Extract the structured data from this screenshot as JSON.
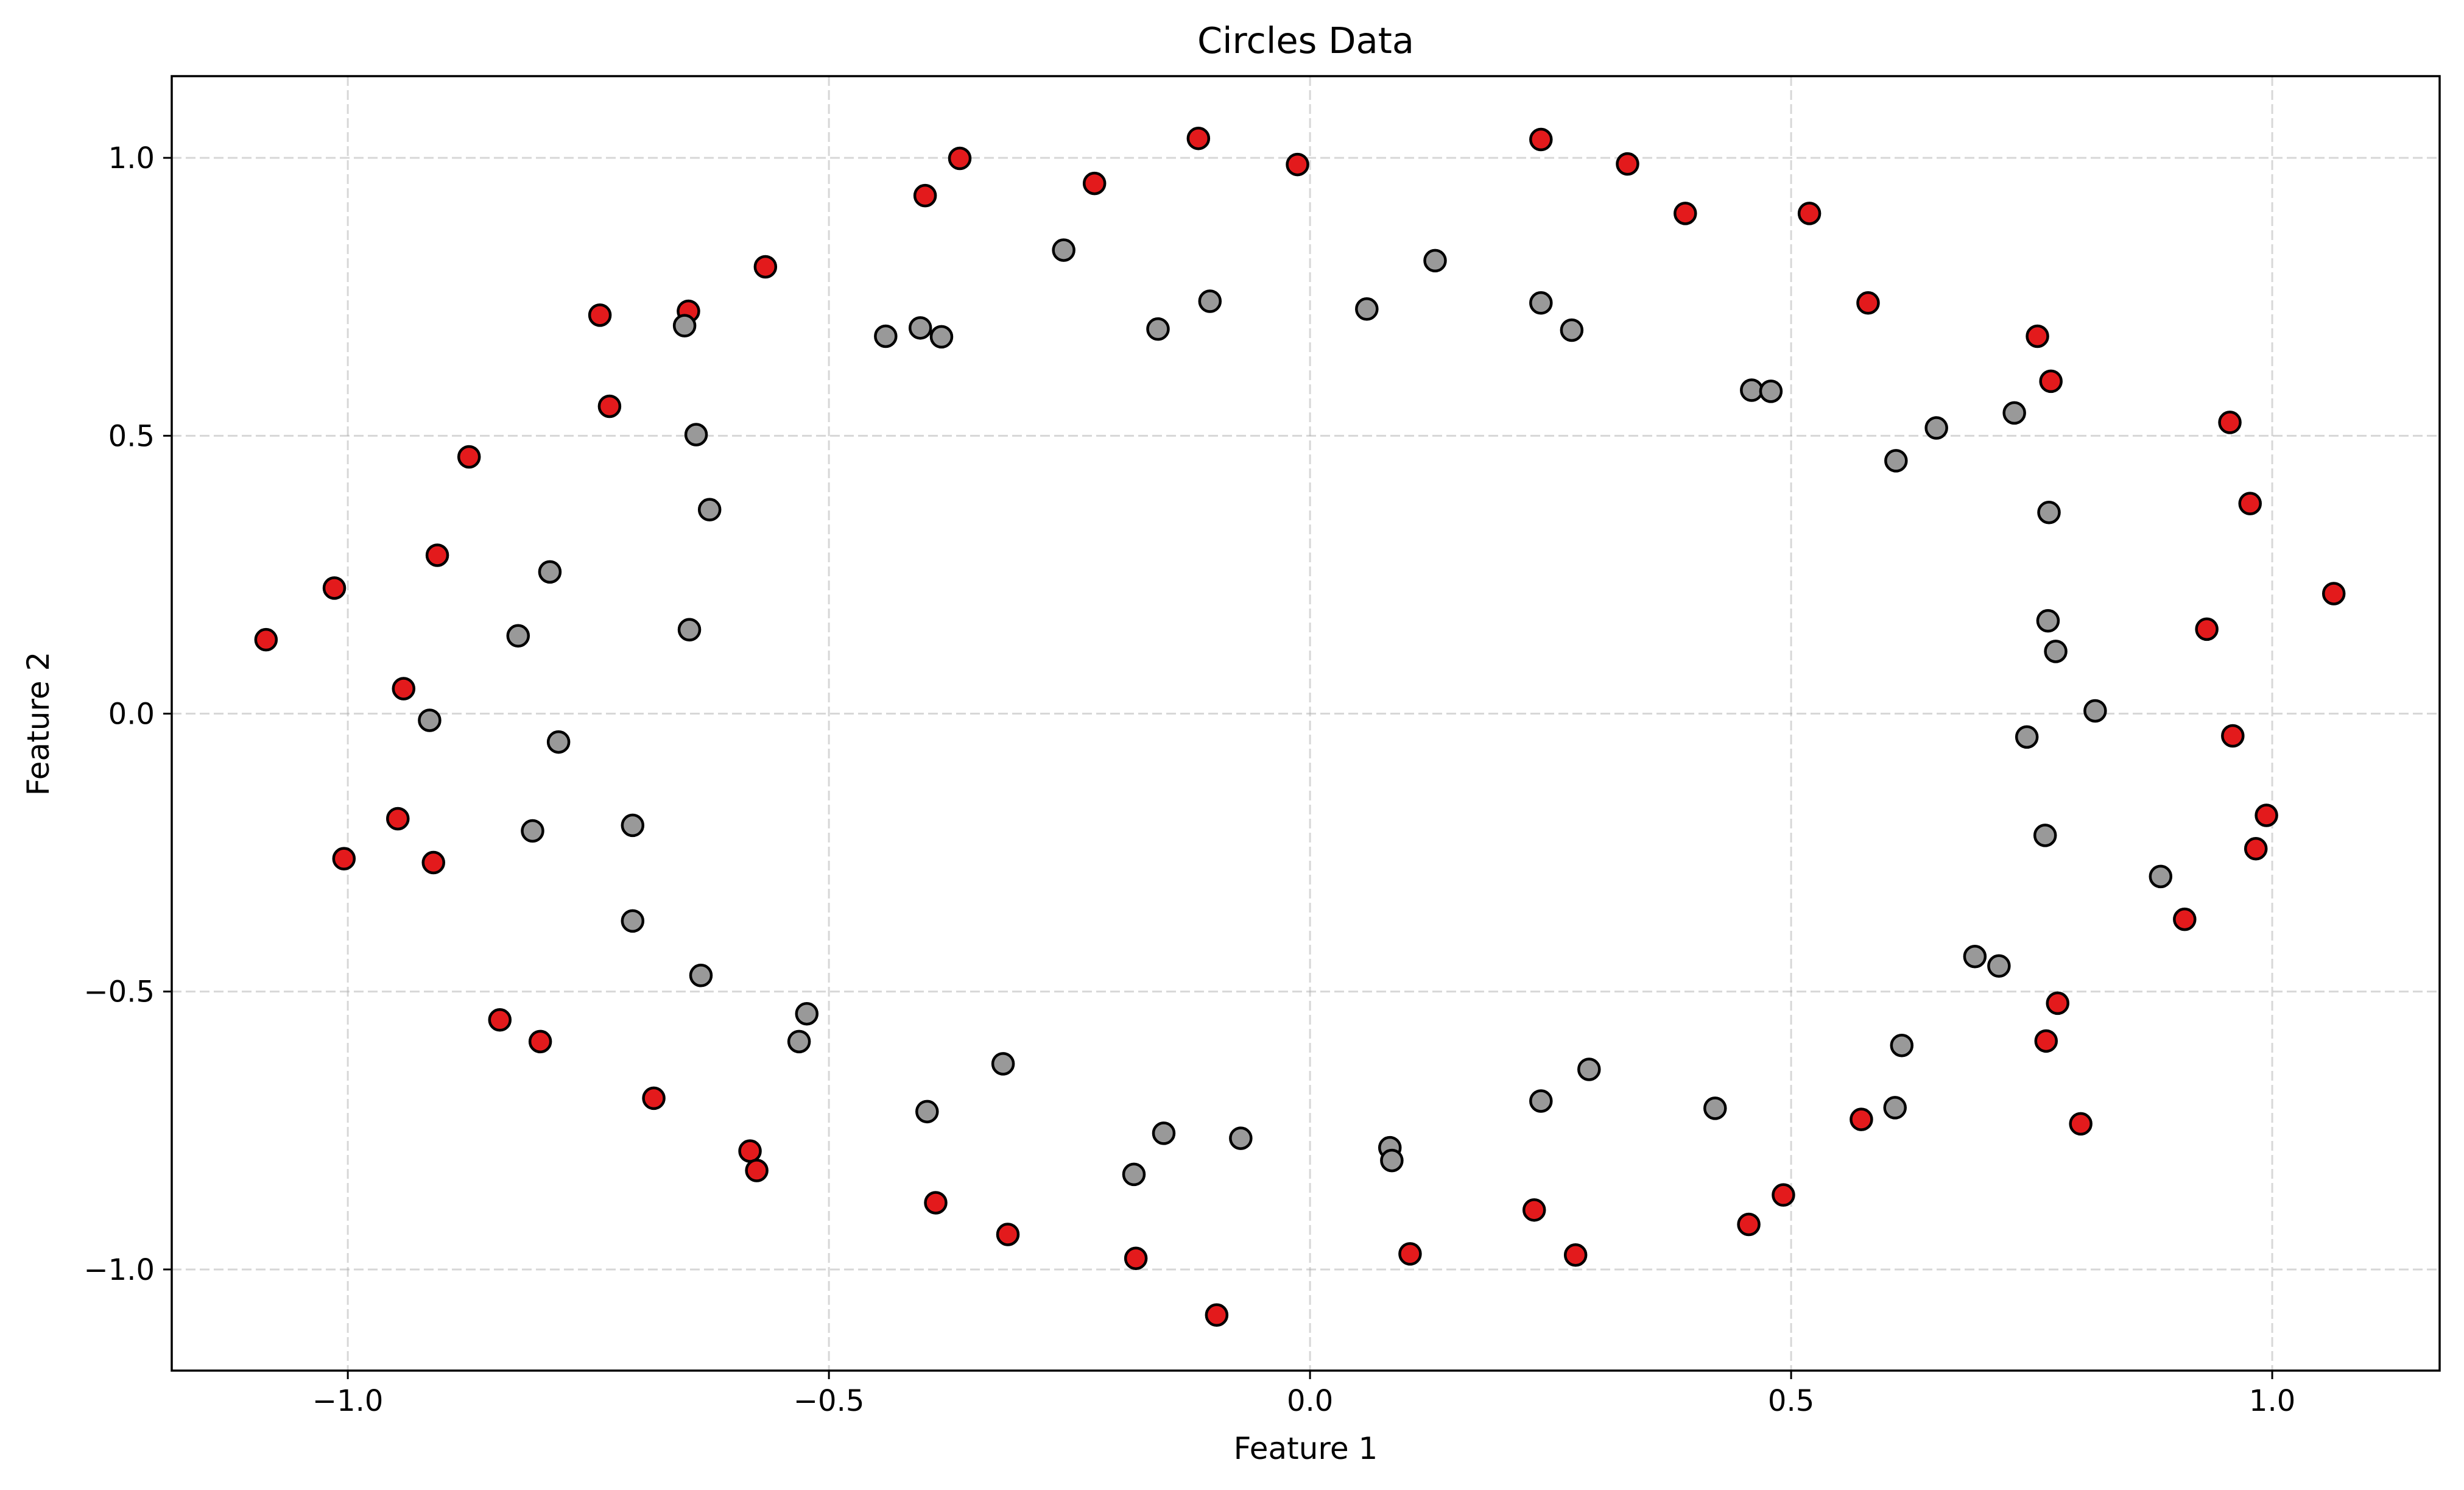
{
  "chart_data": {
    "type": "scatter",
    "title": "Circles Data",
    "xlabel": "Feature 1",
    "ylabel": "Feature 2",
    "xlim": [
      -1.183,
      1.174
    ],
    "ylim": [
      -1.182,
      1.147
    ],
    "xticks": [
      {
        "value": -1.0,
        "label": "−1.0"
      },
      {
        "value": -0.5,
        "label": "−0.5"
      },
      {
        "value": 0.0,
        "label": "0.0"
      },
      {
        "value": 0.5,
        "label": "0.5"
      },
      {
        "value": 1.0,
        "label": "1.0"
      }
    ],
    "yticks": [
      {
        "value": -1.0,
        "label": "−1.0"
      },
      {
        "value": -0.5,
        "label": "−0.5"
      },
      {
        "value": 0.0,
        "label": "0.0"
      },
      {
        "value": 0.5,
        "label": "0.5"
      },
      {
        "value": 1.0,
        "label": "1.0"
      }
    ],
    "grid": true,
    "series": [
      {
        "color": "#e31a1c",
        "points": [
          [
            -1.085,
            0.133
          ],
          [
            -1.014,
            0.226
          ],
          [
            -1.004,
            -0.261
          ],
          [
            -0.942,
            0.045
          ],
          [
            -0.948,
            -0.189
          ],
          [
            -0.907,
            0.285
          ],
          [
            -0.911,
            -0.268
          ],
          [
            -0.874,
            0.462
          ],
          [
            -0.842,
            -0.551
          ],
          [
            -0.8,
            -0.59
          ],
          [
            -0.738,
            0.717
          ],
          [
            -0.728,
            0.553
          ],
          [
            -0.682,
            -0.692
          ],
          [
            -0.646,
            0.724
          ],
          [
            -0.566,
            0.804
          ],
          [
            -0.582,
            -0.787
          ],
          [
            -0.575,
            -0.822
          ],
          [
            -0.4,
            0.932
          ],
          [
            -0.364,
            0.999
          ],
          [
            -0.389,
            -0.88
          ],
          [
            -0.314,
            -0.937
          ],
          [
            -0.224,
            0.954
          ],
          [
            -0.181,
            -0.98
          ],
          [
            -0.116,
            1.035
          ],
          [
            -0.097,
            -1.082
          ],
          [
            -0.013,
            0.988
          ],
          [
            0.104,
            -0.972
          ],
          [
            0.233,
            -0.893
          ],
          [
            0.24,
            1.033
          ],
          [
            0.276,
            -0.974
          ],
          [
            0.33,
            0.989
          ],
          [
            0.39,
            0.9
          ],
          [
            0.456,
            -0.919
          ],
          [
            0.492,
            -0.866
          ],
          [
            0.519,
            0.9
          ],
          [
            0.573,
            -0.73
          ],
          [
            0.58,
            0.739
          ],
          [
            0.756,
            0.679
          ],
          [
            0.765,
            -0.589
          ],
          [
            0.77,
            0.598
          ],
          [
            0.777,
            -0.521
          ],
          [
            0.801,
            -0.738
          ],
          [
            0.909,
            -0.37
          ],
          [
            0.932,
            0.152
          ],
          [
            0.956,
            0.524
          ],
          [
            0.959,
            -0.04
          ],
          [
            0.977,
            0.378
          ],
          [
            0.983,
            -0.243
          ],
          [
            0.994,
            -0.183
          ],
          [
            1.064,
            0.216
          ]
        ]
      },
      {
        "color": "#999999",
        "points": [
          [
            -0.915,
            -0.012
          ],
          [
            -0.823,
            0.14
          ],
          [
            -0.808,
            -0.211
          ],
          [
            -0.79,
            0.255
          ],
          [
            -0.781,
            -0.051
          ],
          [
            -0.704,
            -0.201
          ],
          [
            -0.704,
            -0.373
          ],
          [
            -0.65,
            0.698
          ],
          [
            -0.645,
            0.151
          ],
          [
            -0.638,
            0.502
          ],
          [
            -0.633,
            -0.471
          ],
          [
            -0.624,
            0.367
          ],
          [
            -0.531,
            -0.59
          ],
          [
            -0.523,
            -0.54
          ],
          [
            -0.441,
            0.679
          ],
          [
            -0.405,
            0.694
          ],
          [
            -0.398,
            -0.716
          ],
          [
            -0.383,
            0.678
          ],
          [
            -0.319,
            -0.63
          ],
          [
            -0.256,
            0.834
          ],
          [
            -0.183,
            -0.829
          ],
          [
            -0.158,
            0.692
          ],
          [
            -0.152,
            -0.755
          ],
          [
            -0.104,
            0.742
          ],
          [
            -0.072,
            -0.764
          ],
          [
            0.059,
            0.728
          ],
          [
            0.083,
            -0.781
          ],
          [
            0.085,
            -0.804
          ],
          [
            0.13,
            0.815
          ],
          [
            0.24,
            0.739
          ],
          [
            0.24,
            -0.697
          ],
          [
            0.272,
            0.69
          ],
          [
            0.29,
            -0.64
          ],
          [
            0.421,
            -0.71
          ],
          [
            0.459,
            0.582
          ],
          [
            0.479,
            0.58
          ],
          [
            0.608,
            -0.709
          ],
          [
            0.609,
            0.455
          ],
          [
            0.615,
            -0.597
          ],
          [
            0.651,
            0.514
          ],
          [
            0.691,
            -0.437
          ],
          [
            0.716,
            -0.454
          ],
          [
            0.732,
            0.541
          ],
          [
            0.745,
            -0.042
          ],
          [
            0.764,
            -0.219
          ],
          [
            0.767,
            0.167
          ],
          [
            0.768,
            0.362
          ],
          [
            0.775,
            0.112
          ],
          [
            0.816,
            0.005
          ],
          [
            0.884,
            -0.293
          ]
        ]
      }
    ]
  }
}
